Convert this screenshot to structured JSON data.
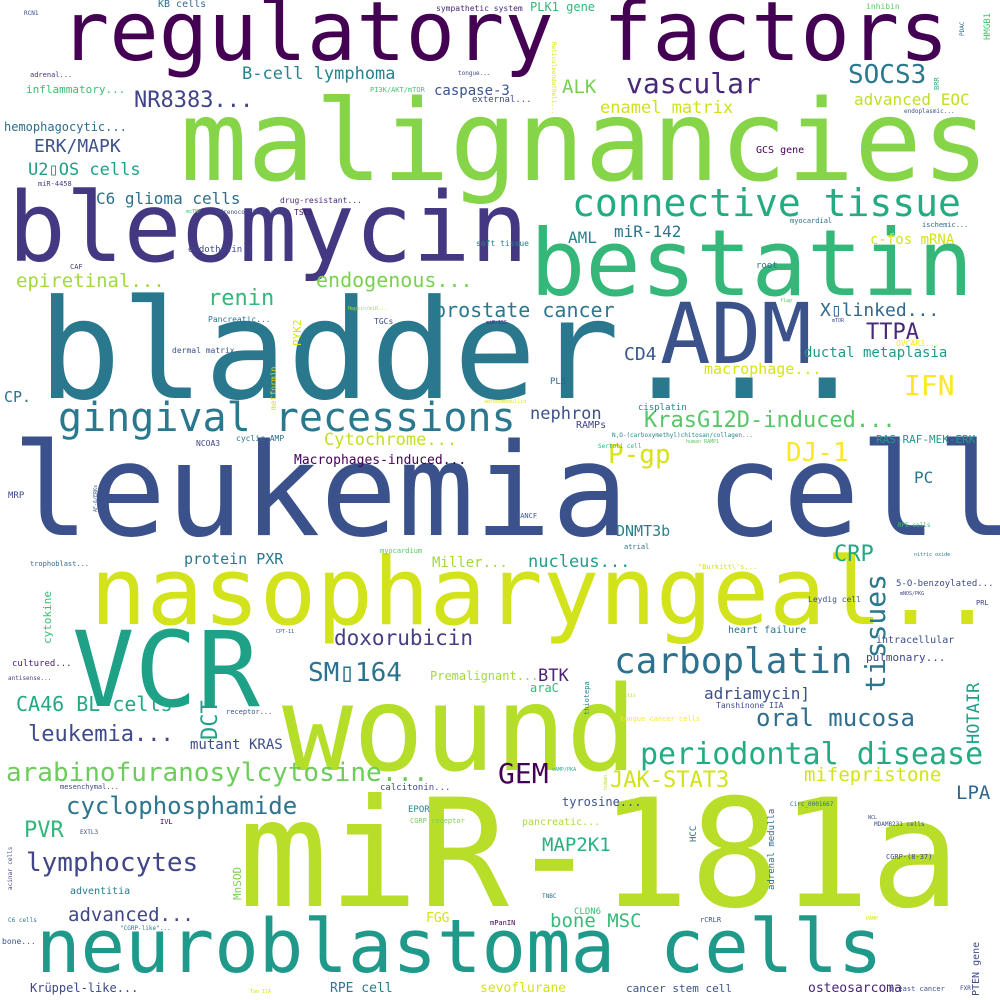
{
  "words": [
    {
      "text": "regulatory factors",
      "color": "#440154"
    },
    {
      "text": "malignancies",
      "color": "#86d549"
    },
    {
      "text": "bleomycin",
      "color": "#453882"
    },
    {
      "text": "bestatin",
      "color": "#35b779"
    },
    {
      "text": "bladder...",
      "color": "#29788e"
    },
    {
      "text": "ADM",
      "color": "#3b528b"
    },
    {
      "text": "leukemia cell",
      "color": "#3b518b"
    },
    {
      "text": "nasopharyngeal...",
      "color": "#d2e21b"
    },
    {
      "text": "VCR",
      "color": "#1fa188"
    },
    {
      "text": "wound",
      "color": "#b5de2b"
    },
    {
      "text": "miR-181a",
      "color": "#b8de29"
    },
    {
      "text": "neuroblastoma cells",
      "color": "#1f9a8a"
    },
    {
      "text": "connective tissue",
      "color": "#25ab82"
    },
    {
      "text": "gingival recessions",
      "color": "#2a788e"
    },
    {
      "text": "carboplatin",
      "color": "#2c718e"
    },
    {
      "text": "periodontal disease",
      "color": "#25ab82"
    },
    {
      "text": "arabinofuranosylcytosine...",
      "color": "#6ccd5a"
    },
    {
      "text": "cyclophosphamide",
      "color": "#2b758e"
    },
    {
      "text": "lymphocytes",
      "color": "#404688"
    },
    {
      "text": "neuroblastoma",
      "color": "#1f9a8a"
    },
    {
      "text": "vascular",
      "color": "#482979"
    },
    {
      "text": "SOCS3",
      "color": "#2a788e"
    },
    {
      "text": "NR8383...",
      "color": "#414487"
    },
    {
      "text": "B-cell lymphoma",
      "color": "#26828e"
    },
    {
      "text": "ALK",
      "color": "#75d054"
    },
    {
      "text": "ERK/MAPK",
      "color": "#3b528b"
    },
    {
      "text": "U2▯OS cells",
      "color": "#1fa088"
    },
    {
      "text": "C6 glioma cells",
      "color": "#2d708e"
    },
    {
      "text": "renin",
      "color": "#35b779"
    },
    {
      "text": "epiretinal...",
      "color": "#a0da39"
    },
    {
      "text": "endogenous...",
      "color": "#7ad151"
    },
    {
      "text": "prostate cancer",
      "color": "#2a788e"
    },
    {
      "text": "IFN",
      "color": "#fde725"
    },
    {
      "text": "KrasG12D-induced...",
      "color": "#56c667"
    },
    {
      "text": "TTPA",
      "color": "#482878"
    },
    {
      "text": "X▯linked...",
      "color": "#31688e"
    },
    {
      "text": "DJ-1",
      "color": "#fde725"
    },
    {
      "text": "P-gp",
      "color": "#d8e219"
    },
    {
      "text": "CD4",
      "color": "#39568c"
    },
    {
      "text": "nephron",
      "color": "#3b528b"
    },
    {
      "text": "Cytochrome...",
      "color": "#c2df23"
    },
    {
      "text": "Macrophages-induced...",
      "color": "#440154"
    },
    {
      "text": "SM▯164",
      "color": "#2c728e"
    },
    {
      "text": "doxorubicin",
      "color": "#433e85"
    },
    {
      "text": "CA46 BL cells",
      "color": "#22a884"
    },
    {
      "text": "leukemia...",
      "color": "#3e4a89"
    },
    {
      "text": "GEM",
      "color": "#440154"
    },
    {
      "text": "JAK-STAT3",
      "color": "#d2e21b"
    },
    {
      "text": "oral mucosa",
      "color": "#2e6e8e"
    },
    {
      "text": "mifepristone",
      "color": "#d2e21b"
    },
    {
      "text": "LPA",
      "color": "#32658e"
    },
    {
      "text": "PVR",
      "color": "#32b67a"
    },
    {
      "text": "MAP2K1",
      "color": "#2ab07f"
    },
    {
      "text": "advanced...",
      "color": "#3f4788"
    },
    {
      "text": "bone MSC",
      "color": "#38b977"
    },
    {
      "text": "CRP",
      "color": "#22a785"
    },
    {
      "text": "BTK",
      "color": "#482475"
    },
    {
      "text": "adriamycin]",
      "color": "#3d4e8a"
    },
    {
      "text": "DCT",
      "color": "#1fa187"
    },
    {
      "text": "tissues",
      "color": "#2a788e"
    },
    {
      "text": "HOTAIR",
      "color": "#1f9e89"
    },
    {
      "text": "AML",
      "color": "#25848e"
    },
    {
      "text": "miR-142",
      "color": "#2b758e"
    },
    {
      "text": "enamel matrix",
      "color": "#d0e11c"
    },
    {
      "text": "advanced EOC",
      "color": "#c0df25"
    },
    {
      "text": "c-fos mRNA",
      "color": "#d2e21b"
    },
    {
      "text": "macrophage...",
      "color": "#d8e219"
    },
    {
      "text": "ductal metaplasia",
      "color": "#1f9a8a"
    },
    {
      "text": "protein PXR",
      "color": "#2a778e"
    },
    {
      "text": "DNMT3b",
      "color": "#26828e"
    },
    {
      "text": "nucleus...",
      "color": "#1f9e89"
    },
    {
      "text": "Miller...",
      "color": "#a2da37"
    },
    {
      "text": "PC",
      "color": "#2a768e"
    },
    {
      "text": "caspase-3",
      "color": "#39558c"
    },
    {
      "text": "inflammatory...",
      "color": "#3ebc73"
    },
    {
      "text": "hemophagocytic...",
      "color": "#2e6e8e"
    },
    {
      "text": "GCS gene",
      "color": "#440154"
    },
    {
      "text": "PLK1 gene",
      "color": "#35b779"
    },
    {
      "text": "KB cells",
      "color": "#2e6d8e"
    },
    {
      "text": "sympathetic system",
      "color": "#482878"
    },
    {
      "text": "inhibin",
      "color": "#5ec962"
    },
    {
      "text": "RCN1",
      "color": "#3f4788"
    },
    {
      "text": "PDAC",
      "color": "#2e6e8e"
    },
    {
      "text": "HMGB1",
      "color": "#48c16e"
    },
    {
      "text": "adrenal...",
      "color": "#472f7d"
    },
    {
      "text": "tongue...",
      "color": "#3e4c8a"
    },
    {
      "text": "PI3K/AKT/mTOR",
      "color": "#4ac16d"
    },
    {
      "text": "external...",
      "color": "#404688"
    },
    {
      "text": "BRR",
      "color": "#26ad81"
    },
    {
      "text": "Reticuloendotheli...",
      "color": "#d8e219"
    },
    {
      "text": "endoplasmic...",
      "color": "#3b528b"
    },
    {
      "text": "miR-4458",
      "color": "#424186"
    },
    {
      "text": "drug-resistant...",
      "color": "#472c7a"
    },
    {
      "text": "adrenocortical cell",
      "color": "#3d4e8a"
    },
    {
      "text": "TSCs",
      "color": "#471365"
    },
    {
      "text": "mcTNF",
      "color": "#4ac16d"
    },
    {
      "text": "soft tissue",
      "color": "#25848e"
    },
    {
      "text": "myocardial",
      "color": "#2c718e"
    },
    {
      "text": "ischemic...",
      "color": "#2e6e8e"
    },
    {
      "text": "CAF",
      "color": "#453882"
    },
    {
      "text": "endothelin 1",
      "color": "#3f4889"
    },
    {
      "text": "root",
      "color": "#2a768e"
    },
    {
      "text": "PYK2",
      "color": "#d8e219"
    },
    {
      "text": "TGCs",
      "color": "#3e4a89"
    },
    {
      "text": "Pancreatic...",
      "color": "#2c718e"
    },
    {
      "text": "miR-155",
      "color": "#46307e"
    },
    {
      "text": "flap",
      "color": "#5cc863"
    },
    {
      "text": "mTOR",
      "color": "#3e4989"
    },
    {
      "text": "OVCAR3...",
      "color": "#fde725"
    },
    {
      "text": "Hepsin/miR...",
      "color": "#a5db36"
    },
    {
      "text": "dermal matrix",
      "color": "#3b528b"
    },
    {
      "text": "metformin",
      "color": "#d2e21b"
    },
    {
      "text": "CP.",
      "color": "#2d708e"
    },
    {
      "text": "PLB",
      "color": "#32658e"
    },
    {
      "text": "cisplatin",
      "color": "#26828e"
    },
    {
      "text": "human RAMP1",
      "color": "#5ec962"
    },
    {
      "text": "adrenomedullin",
      "color": "#d8e219"
    },
    {
      "text": "RAMPs",
      "color": "#414487"
    },
    {
      "text": "NCOA3",
      "color": "#3f4788"
    },
    {
      "text": "cyclic AMP",
      "color": "#2e6e8e"
    },
    {
      "text": "N,O-(carboxymethyl)chitosan/collagen...",
      "color": "#24878e"
    },
    {
      "text": "RAS-RAF-MEK-ERK",
      "color": "#1f9a8a"
    },
    {
      "text": "Sertoli cell",
      "color": "#2ab07f"
    },
    {
      "text": "MRP",
      "color": "#3e4989"
    },
    {
      "text": "AF-6/ERKs",
      "color": "#39558c"
    },
    {
      "text": "FANCF",
      "color": "#39568c"
    },
    {
      "text": "RPE cells",
      "color": "#3fbc73"
    },
    {
      "text": "trophoblast...",
      "color": "#2e6e8e"
    },
    {
      "text": "myocardium",
      "color": "#56c667"
    },
    {
      "text": "atrial",
      "color": "#2c728e"
    },
    {
      "text": "nitric oxide",
      "color": "#2a788e"
    },
    {
      "text": "\"Burkitt\\'s...",
      "color": "#d2e21b"
    },
    {
      "text": "5-O-benzoylated...",
      "color": "#3e4a89"
    },
    {
      "text": "cytokine",
      "color": "#3dbc74"
    },
    {
      "text": "mNOS/PKG",
      "color": "#3f4788"
    },
    {
      "text": "Leydig cell",
      "color": "#3b518b"
    },
    {
      "text": "PRL",
      "color": "#414487"
    },
    {
      "text": "CPT-11",
      "color": "#3b528b"
    },
    {
      "text": "heart failure",
      "color": "#2d718e"
    },
    {
      "text": "intracellular",
      "color": "#3b518b"
    },
    {
      "text": "cultured...",
      "color": "#482173"
    },
    {
      "text": "Premalignant...",
      "color": "#a2da37"
    },
    {
      "text": "araC",
      "color": "#35b779"
    },
    {
      "text": "pulmonary...",
      "color": "#3f4788"
    },
    {
      "text": "thiotepa",
      "color": "#27808e"
    },
    {
      "text": "antisense...",
      "color": "#3f4788"
    },
    {
      "text": "testis",
      "color": "#b5de2b"
    },
    {
      "text": "receptor...",
      "color": "#3b528b"
    },
    {
      "text": "Tanshinone IIA",
      "color": "#3e4a89"
    },
    {
      "text": "tongue cancer cells",
      "color": "#fde725"
    },
    {
      "text": "cAMP/PKA",
      "color": "#2ab07f"
    },
    {
      "text": "human...",
      "color": "#b5de2b"
    },
    {
      "text": "mutant KRAS",
      "color": "#3d4e8a"
    },
    {
      "text": "tyrosine...",
      "color": "#3b528b"
    },
    {
      "text": "mesenchymal...",
      "color": "#3f4788"
    },
    {
      "text": "calcitonin...",
      "color": "#3e4c8a"
    },
    {
      "text": "CGRP receptor",
      "color": "#7ad151"
    },
    {
      "text": "Circ_0001667",
      "color": "#2e6e8e"
    },
    {
      "text": "NCL",
      "color": "#3e4989"
    },
    {
      "text": "EXTL3",
      "color": "#3e4989"
    },
    {
      "text": "IVL",
      "color": "#440154"
    },
    {
      "text": "EPOR",
      "color": "#26828e"
    },
    {
      "text": "pancreatic...",
      "color": "#a8db34"
    },
    {
      "text": "HCC",
      "color": "#2c728e"
    },
    {
      "text": "adrenal medulla",
      "color": "#2e6d8e"
    },
    {
      "text": "MDAMB231 cells",
      "color": "#3b528b"
    },
    {
      "text": "CGRP-(8-37)",
      "color": "#3e4a89"
    },
    {
      "text": "acinar cells",
      "color": "#3f4788"
    },
    {
      "text": "adventitia",
      "color": "#2a788e"
    },
    {
      "text": "MnSOD",
      "color": "#7ad151"
    },
    {
      "text": "TNBC",
      "color": "#2e6e8e"
    },
    {
      "text": "CLDN6",
      "color": "#3dbc74"
    },
    {
      "text": "PAMP",
      "color": "#d8e219"
    },
    {
      "text": "C6 cells",
      "color": "#2a768e"
    },
    {
      "text": "\"CGRP-like\"...",
      "color": "#2a788e"
    },
    {
      "text": "FGG",
      "color": "#d2e21b"
    },
    {
      "text": "mPanIN",
      "color": "#440154"
    },
    {
      "text": "rCRLR",
      "color": "#3b528b"
    },
    {
      "text": "bone...",
      "color": "#3b528b"
    },
    {
      "text": "Krüppel-like...",
      "color": "#3e4989"
    },
    {
      "text": "RPE cell",
      "color": "#2a788e"
    },
    {
      "text": "sevoflurane",
      "color": "#d2e21b"
    },
    {
      "text": "cancer stem cell",
      "color": "#3b518b"
    },
    {
      "text": "osteosarcoma",
      "color": "#482475"
    },
    {
      "text": "PTEN gene",
      "color": "#3e4c8a"
    },
    {
      "text": "breast cancer",
      "color": "#3b528b"
    },
    {
      "text": "Tan IIA",
      "color": "#d8e219"
    },
    {
      "text": "FXR",
      "color": "#3e4a89"
    }
  ]
}
